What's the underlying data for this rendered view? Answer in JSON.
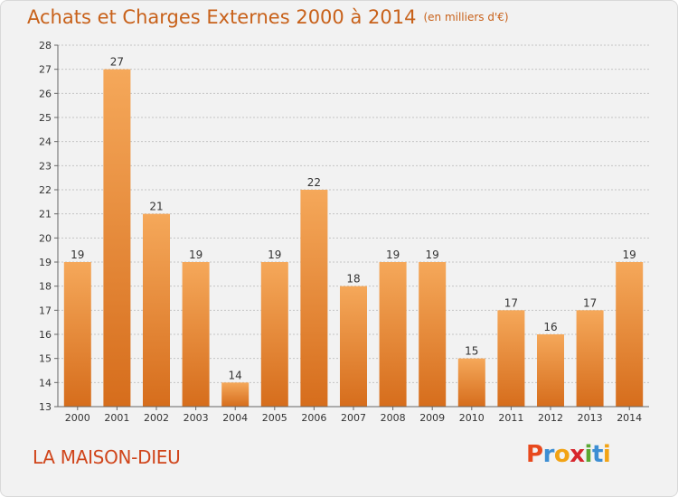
{
  "header": {
    "title": "Achats et Charges Externes 2000 à 2014",
    "unit": "(en milliers d'€)"
  },
  "footer": {
    "commune": "LA MAISON-DIEU",
    "logo_letters": [
      "P",
      "r",
      "o",
      "x",
      "i",
      "t",
      "i"
    ],
    "logo_colors": [
      "#e8491d",
      "#3d8ed3",
      "#f2a314",
      "#d7262d",
      "#5aa832",
      "#3d8ed3",
      "#f2a314"
    ]
  },
  "colors": {
    "bar_top": "#f5a85a",
    "bar_bottom": "#d66d1c",
    "title": "#c8611a",
    "grid": "#c4c4c4"
  },
  "chart_data": {
    "type": "bar",
    "title": "Achats et Charges Externes 2000 à 2014",
    "subtitle": "(en milliers d'€)",
    "categories": [
      "2000",
      "2001",
      "2002",
      "2003",
      "2004",
      "2005",
      "2006",
      "2007",
      "2008",
      "2009",
      "2010",
      "2011",
      "2012",
      "2013",
      "2014"
    ],
    "values": [
      19,
      27,
      21,
      19,
      14,
      19,
      22,
      18,
      19,
      19,
      15,
      17,
      16,
      17,
      19
    ],
    "ylim": [
      13,
      28
    ],
    "yticks": [
      13,
      14,
      15,
      16,
      17,
      18,
      19,
      20,
      21,
      22,
      23,
      24,
      25,
      26,
      27,
      28
    ],
    "grid": true,
    "xlabel": "",
    "ylabel": ""
  }
}
